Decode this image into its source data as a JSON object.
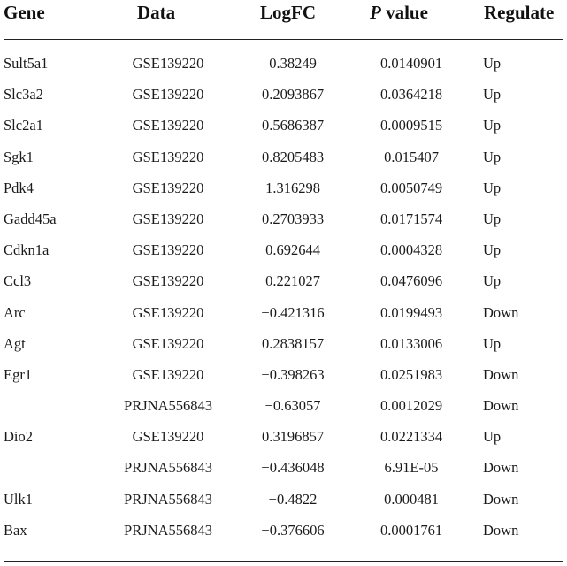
{
  "table": {
    "headers": {
      "gene": "Gene",
      "data": "Data",
      "logfc": "LogFC",
      "p_italic": "P",
      "p_rest": " value",
      "regulate": "Regulate"
    },
    "rows": [
      {
        "gene": "Sult5a1",
        "data": "GSE139220",
        "logfc": "0.38249",
        "p": "0.0140901",
        "regulate": "Up"
      },
      {
        "gene": "Slc3a2",
        "data": "GSE139220",
        "logfc": "0.2093867",
        "p": "0.0364218",
        "regulate": "Up"
      },
      {
        "gene": "Slc2a1",
        "data": "GSE139220",
        "logfc": "0.5686387",
        "p": "0.0009515",
        "regulate": "Up"
      },
      {
        "gene": "Sgk1",
        "data": "GSE139220",
        "logfc": "0.8205483",
        "p": "0.015407",
        "regulate": "Up"
      },
      {
        "gene": "Pdk4",
        "data": "GSE139220",
        "logfc": "1.316298",
        "p": "0.0050749",
        "regulate": "Up"
      },
      {
        "gene": "Gadd45a",
        "data": "GSE139220",
        "logfc": "0.2703933",
        "p": "0.0171574",
        "regulate": "Up"
      },
      {
        "gene": "Cdkn1a",
        "data": "GSE139220",
        "logfc": "0.692644",
        "p": "0.0004328",
        "regulate": "Up"
      },
      {
        "gene": "Ccl3",
        "data": "GSE139220",
        "logfc": "0.221027",
        "p": "0.0476096",
        "regulate": "Up"
      },
      {
        "gene": "Arc",
        "data": "GSE139220",
        "logfc": "−0.421316",
        "p": "0.0199493",
        "regulate": "Down"
      },
      {
        "gene": "Agt",
        "data": "GSE139220",
        "logfc": "0.2838157",
        "p": "0.0133006",
        "regulate": "Up"
      },
      {
        "gene": "Egr1",
        "data": "GSE139220",
        "logfc": "−0.398263",
        "p": "0.0251983",
        "regulate": "Down"
      },
      {
        "gene": "",
        "data": "PRJNA556843",
        "logfc": "−0.63057",
        "p": "0.0012029",
        "regulate": "Down"
      },
      {
        "gene": "Dio2",
        "data": "GSE139220",
        "logfc": "0.3196857",
        "p": "0.0221334",
        "regulate": "Up"
      },
      {
        "gene": "",
        "data": "PRJNA556843",
        "logfc": "−0.436048",
        "p": "6.91E-05",
        "regulate": "Down"
      },
      {
        "gene": "Ulk1",
        "data": "PRJNA556843",
        "logfc": "−0.4822",
        "p": "0.000481",
        "regulate": "Down"
      },
      {
        "gene": "Bax",
        "data": "PRJNA556843",
        "logfc": "−0.376606",
        "p": "0.0001761",
        "regulate": "Down"
      }
    ]
  }
}
